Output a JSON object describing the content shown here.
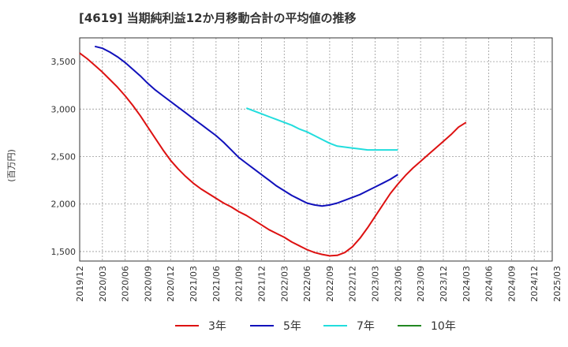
{
  "title": "[4619]  当期純利益12か月移動合計の平均値の推移",
  "chart_data": {
    "type": "line",
    "title": "[4619]  当期純利益12か月移動合計の平均値の推移",
    "ylabel": "(百万円)",
    "ylim": [
      1400,
      3750
    ],
    "yticks": [
      1500,
      2000,
      2500,
      3000,
      3500
    ],
    "ytick_labels": [
      "1,500",
      "2,000",
      "2,500",
      "3,000",
      "3,500"
    ],
    "xticks": [
      "2019/12",
      "2020/03",
      "2020/06",
      "2020/09",
      "2020/12",
      "2021/03",
      "2021/06",
      "2021/09",
      "2021/12",
      "2022/03",
      "2022/06",
      "2022/09",
      "2022/12",
      "2023/03",
      "2023/06",
      "2023/09",
      "2023/12",
      "2024/03",
      "2024/06",
      "2024/09",
      "2024/12",
      "2025/03"
    ],
    "grid": true,
    "legend_position": "bottom",
    "series": [
      {
        "name": "3年",
        "color": "#dd1111",
        "values": [
          3590,
          3530,
          3460,
          3390,
          3310,
          3230,
          3140,
          3040,
          2930,
          2810,
          2690,
          2570,
          2460,
          2370,
          2290,
          2220,
          2160,
          2110,
          2060,
          2010,
          1970,
          1920,
          1880,
          1830,
          1780,
          1730,
          1690,
          1650,
          1600,
          1560,
          1520,
          1490,
          1470,
          1455,
          1460,
          1490,
          1550,
          1640,
          1750,
          1870,
          1990,
          2110,
          2210,
          2300,
          2380,
          2450,
          2520,
          2590,
          2660,
          2730,
          2810,
          2860
        ]
      },
      {
        "name": "5年",
        "color": "#1111bb",
        "values": [
          null,
          null,
          3660,
          3640,
          3600,
          3550,
          3490,
          3420,
          3350,
          3270,
          3200,
          3140,
          3080,
          3020,
          2960,
          2900,
          2840,
          2780,
          2720,
          2650,
          2570,
          2490,
          2430,
          2370,
          2310,
          2250,
          2190,
          2140,
          2090,
          2050,
          2010,
          1990,
          1980,
          1990,
          2010,
          2040,
          2070,
          2100,
          2140,
          2180,
          2220,
          2260,
          2310
        ]
      },
      {
        "name": "7年",
        "color": "#22dddd",
        "values": [
          null,
          null,
          null,
          null,
          null,
          null,
          null,
          null,
          null,
          null,
          null,
          null,
          null,
          null,
          null,
          null,
          null,
          null,
          null,
          null,
          null,
          null,
          3010,
          2980,
          2950,
          2920,
          2890,
          2860,
          2830,
          2790,
          2760,
          2720,
          2680,
          2640,
          2610,
          2600,
          2590,
          2580,
          2570,
          2570,
          2570,
          2570,
          2570
        ]
      },
      {
        "name": "10年",
        "color": "#228822",
        "values": []
      }
    ]
  }
}
